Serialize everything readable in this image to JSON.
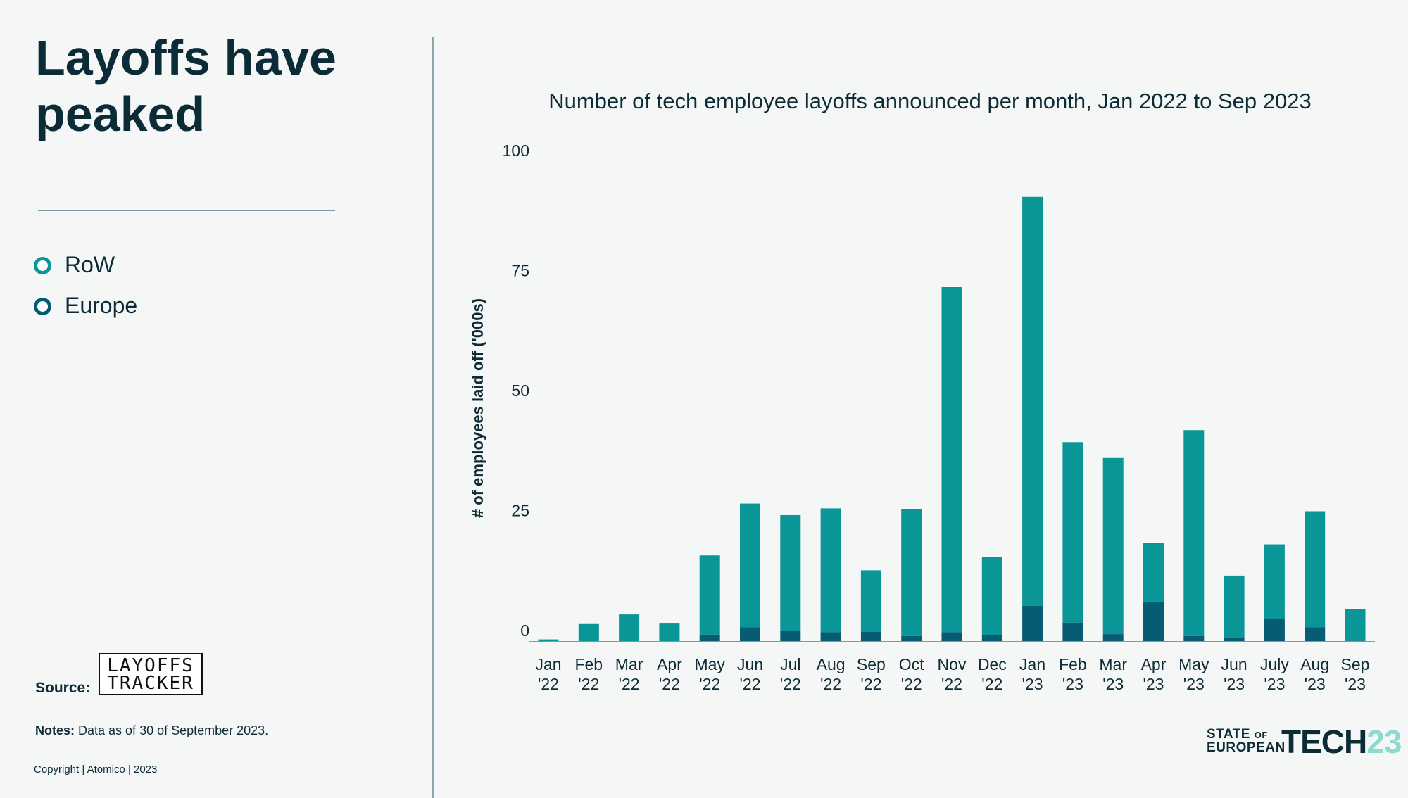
{
  "headline": {
    "line1": "Layoffs have",
    "line2": "peaked"
  },
  "legend": [
    {
      "label": "RoW",
      "color": "#0a9597"
    },
    {
      "label": "Europe",
      "color": "#055c73"
    }
  ],
  "source": {
    "label": "Source:",
    "logo_line1": "LAYOFFS",
    "logo_line2": "TRACKER"
  },
  "notes": {
    "label": "Notes:",
    "text": " Data as of 30 of September 2023."
  },
  "copyright": "Copyright | Atomico | 2023",
  "brand": {
    "state": "STATE",
    "of": "OF",
    "european": "EUROPEAN",
    "tech": "TECH",
    "year": "23"
  },
  "chart_data": {
    "type": "bar",
    "stacked": true,
    "title": "Number of tech employee layoffs announced per month, Jan 2022 to Sep 2023",
    "ylabel": "# of employees laid off ('000s)",
    "xlabel": "",
    "ylim": [
      0,
      100
    ],
    "yticks": [
      0,
      25,
      50,
      75,
      100
    ],
    "categories": [
      [
        "Jan",
        "'22"
      ],
      [
        "Feb",
        "'22"
      ],
      [
        "Mar",
        "'22"
      ],
      [
        "Apr",
        "'22"
      ],
      [
        "May",
        "'22"
      ],
      [
        "Jun",
        "'22"
      ],
      [
        "Jul",
        "'22"
      ],
      [
        "Aug",
        "'22"
      ],
      [
        "Sep",
        "'22"
      ],
      [
        "Oct",
        "'22"
      ],
      [
        "Nov",
        "'22"
      ],
      [
        "Dec",
        "'22"
      ],
      [
        "Jan",
        "'23"
      ],
      [
        "Feb",
        "'23"
      ],
      [
        "Mar",
        "'23"
      ],
      [
        "Apr",
        "'23"
      ],
      [
        "May",
        "'23"
      ],
      [
        "Jun",
        "'23"
      ],
      [
        "July",
        "'23"
      ],
      [
        "Aug",
        "'23"
      ],
      [
        "Sep",
        "'23"
      ]
    ],
    "series": [
      {
        "name": "Europe",
        "color": "#055c73",
        "values": [
          0.1,
          0.1,
          0.1,
          0.1,
          1.5,
          3.0,
          2.2,
          2.0,
          2.1,
          1.2,
          2.0,
          1.4,
          7.5,
          4.0,
          1.6,
          8.4,
          1.2,
          0.8,
          4.8,
          3.0,
          0.2
        ]
      },
      {
        "name": "RoW",
        "color": "#0a9597",
        "values": [
          0.4,
          3.6,
          5.6,
          3.7,
          16.5,
          25.8,
          24.2,
          25.8,
          12.8,
          26.4,
          71.9,
          16.2,
          85.2,
          37.6,
          36.7,
          12.2,
          42.9,
          13.0,
          15.5,
          24.2,
          6.6
        ]
      }
    ]
  }
}
